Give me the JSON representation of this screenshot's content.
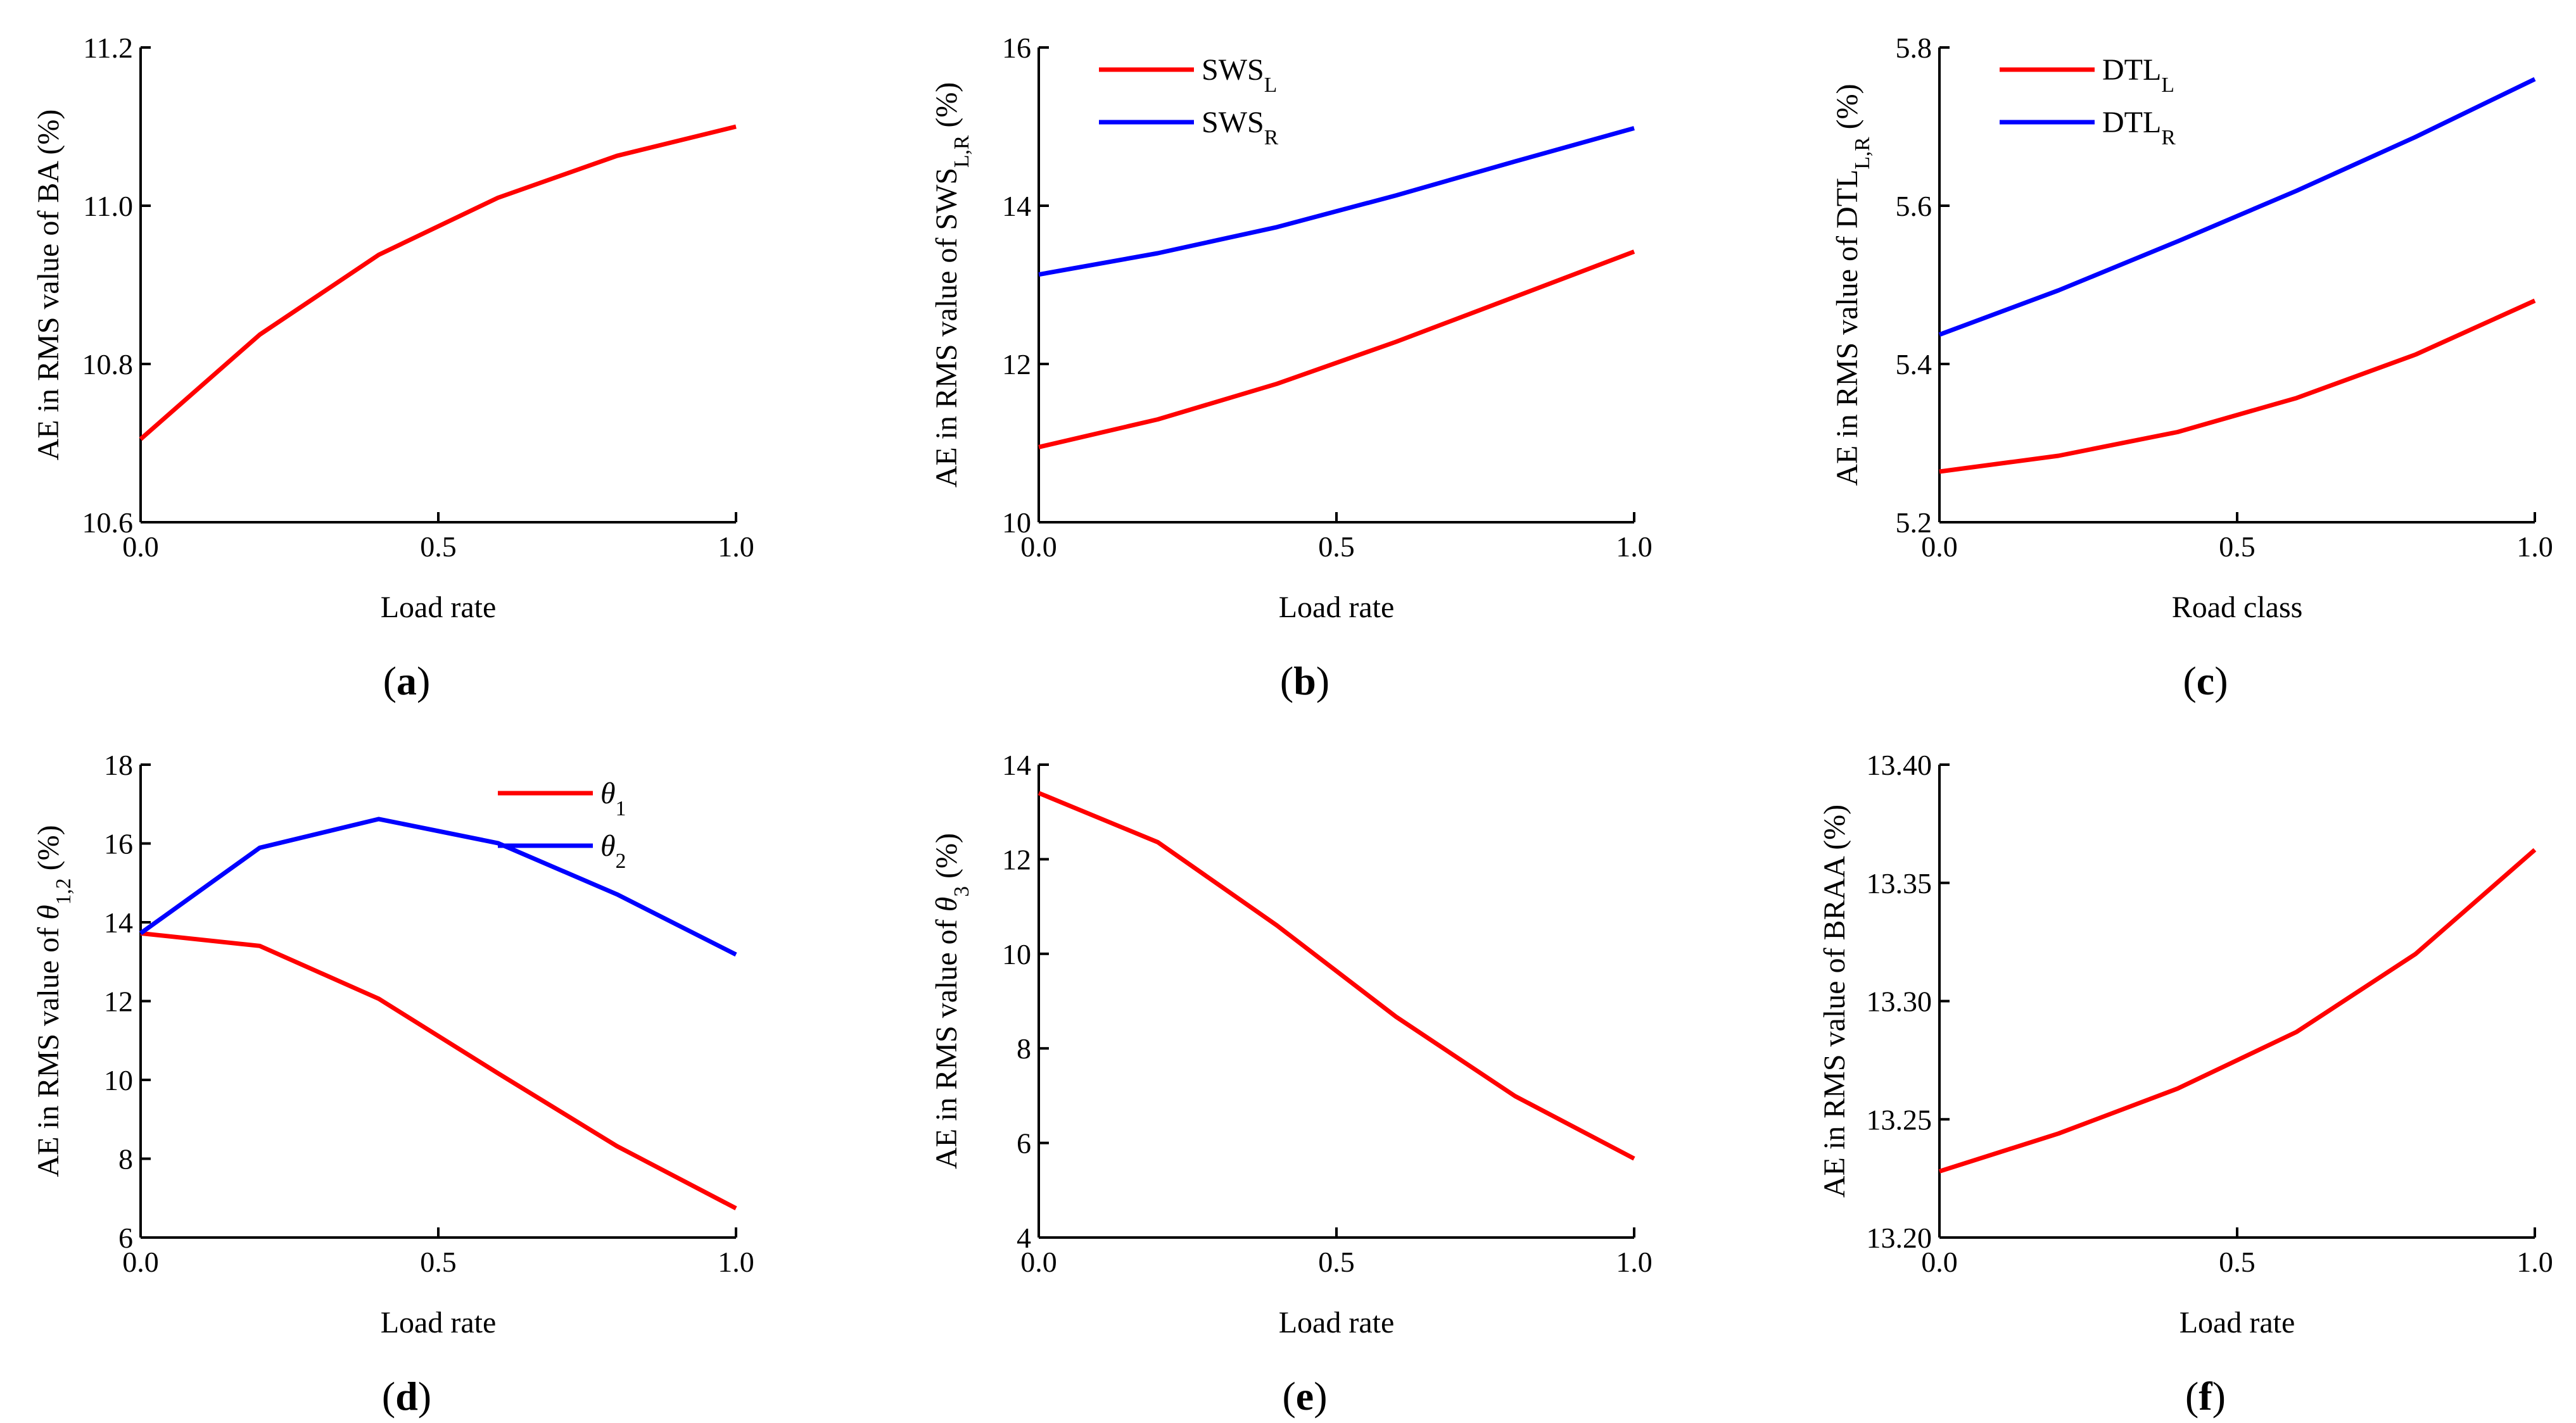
{
  "figure": {
    "title": ""
  },
  "chart_data": [
    {
      "id": "a",
      "type": "line",
      "caption": "a",
      "xlabel": "Load rate",
      "ylabel": [
        {
          "t": "AE in RMS value of BA (%)"
        }
      ],
      "xlim": [
        0,
        1
      ],
      "ylim": [
        10.6,
        11.2
      ],
      "xticks": [
        0,
        0.5,
        1
      ],
      "xtick_labels": [
        "0.0",
        "0.5",
        "1.0"
      ],
      "yticks": [
        10.6,
        10.8,
        11.0,
        11.2
      ],
      "ytick_labels": [
        "10.6",
        "10.8",
        "11.0",
        "11.2"
      ],
      "x": [
        0,
        0.2,
        0.4,
        0.6,
        0.8,
        1.0
      ],
      "series": [
        {
          "name": "BA",
          "color": "#ff0000",
          "values": [
            10.705,
            10.837,
            10.938,
            11.01,
            11.063,
            11.1
          ]
        }
      ],
      "legend": null
    },
    {
      "id": "b",
      "type": "line",
      "caption": "b",
      "xlabel": "Load rate",
      "ylabel": [
        {
          "t": "AE in RMS value of SWS"
        },
        {
          "t": "L,R",
          "sub": true
        },
        {
          "t": " (%)"
        }
      ],
      "xlim": [
        0,
        1
      ],
      "ylim": [
        10,
        16
      ],
      "xticks": [
        0,
        0.5,
        1
      ],
      "xtick_labels": [
        "0.0",
        "0.5",
        "1.0"
      ],
      "yticks": [
        10,
        12,
        14,
        16
      ],
      "ytick_labels": [
        "10",
        "12",
        "14",
        "16"
      ],
      "x": [
        0,
        0.2,
        0.4,
        0.6,
        0.8,
        1.0
      ],
      "series": [
        {
          "name": "SWS_L",
          "color": "#ff0000",
          "values": [
            10.95,
            11.3,
            11.75,
            12.28,
            12.85,
            13.42
          ]
        },
        {
          "name": "SWS_R",
          "color": "#0000ff",
          "values": [
            13.13,
            13.4,
            13.73,
            14.13,
            14.56,
            14.98
          ]
        }
      ],
      "legend": {
        "position": "top-left",
        "entries": [
          {
            "color": "#ff0000",
            "parts": [
              {
                "t": "SWS"
              },
              {
                "t": "L",
                "sub": true
              }
            ]
          },
          {
            "color": "#0000ff",
            "parts": [
              {
                "t": "SWS"
              },
              {
                "t": "R",
                "sub": true
              }
            ]
          }
        ]
      }
    },
    {
      "id": "c",
      "type": "line",
      "caption": "c",
      "xlabel": "Road class",
      "ylabel": [
        {
          "t": "AE in RMS value of DTL"
        },
        {
          "t": "L,R",
          "sub": true
        },
        {
          "t": " (%)"
        }
      ],
      "xlim": [
        0,
        1
      ],
      "ylim": [
        5.2,
        5.8
      ],
      "xticks": [
        0,
        0.5,
        1
      ],
      "xtick_labels": [
        "0.0",
        "0.5",
        "1.0"
      ],
      "yticks": [
        5.2,
        5.4,
        5.6,
        5.8
      ],
      "ytick_labels": [
        "5.2",
        "5.4",
        "5.6",
        "5.8"
      ],
      "x": [
        0,
        0.2,
        0.4,
        0.6,
        0.8,
        1.0
      ],
      "series": [
        {
          "name": "DTL_L",
          "color": "#ff0000",
          "values": [
            5.264,
            5.284,
            5.314,
            5.357,
            5.412,
            5.48
          ]
        },
        {
          "name": "DTL_R",
          "color": "#0000ff",
          "values": [
            5.437,
            5.493,
            5.555,
            5.619,
            5.687,
            5.76
          ]
        }
      ],
      "legend": {
        "position": "top-left",
        "entries": [
          {
            "color": "#ff0000",
            "parts": [
              {
                "t": "DTL"
              },
              {
                "t": "L",
                "sub": true
              }
            ]
          },
          {
            "color": "#0000ff",
            "parts": [
              {
                "t": "DTL"
              },
              {
                "t": "R",
                "sub": true
              }
            ]
          }
        ]
      }
    },
    {
      "id": "d",
      "type": "line",
      "caption": "d",
      "xlabel": "Load rate",
      "ylabel": [
        {
          "t": "AE in RMS value of "
        },
        {
          "t": "θ",
          "italic": true
        },
        {
          "t": "1,2",
          "sub": true
        },
        {
          "t": " (%)"
        }
      ],
      "xlim": [
        0,
        1
      ],
      "ylim": [
        6,
        18
      ],
      "xticks": [
        0,
        0.5,
        1
      ],
      "xtick_labels": [
        "0.0",
        "0.5",
        "1.0"
      ],
      "yticks": [
        6,
        8,
        10,
        12,
        14,
        16,
        18
      ],
      "ytick_labels": [
        "6",
        "8",
        "10",
        "12",
        "14",
        "16",
        "18"
      ],
      "x": [
        0,
        0.2,
        0.4,
        0.6,
        0.8,
        1.0
      ],
      "series": [
        {
          "name": "θ1",
          "color": "#ff0000",
          "values": [
            13.72,
            13.4,
            12.06,
            10.17,
            8.32,
            6.74
          ]
        },
        {
          "name": "θ2",
          "color": "#0000ff",
          "values": [
            13.72,
            15.89,
            16.62,
            16.01,
            14.71,
            13.18
          ]
        }
      ],
      "legend": {
        "position": "top-right",
        "entries": [
          {
            "color": "#ff0000",
            "parts": [
              {
                "t": "θ",
                "italic": true
              },
              {
                "t": "1",
                "sub": true
              }
            ]
          },
          {
            "color": "#0000ff",
            "parts": [
              {
                "t": "θ",
                "italic": true
              },
              {
                "t": "2",
                "sub": true
              }
            ]
          }
        ]
      }
    },
    {
      "id": "e",
      "type": "line",
      "caption": "e",
      "xlabel": "Load rate",
      "ylabel": [
        {
          "t": "AE in RMS value of "
        },
        {
          "t": "θ",
          "italic": true
        },
        {
          "t": "3",
          "sub": true
        },
        {
          "t": " (%)"
        }
      ],
      "xlim": [
        0,
        1
      ],
      "ylim": [
        4,
        14
      ],
      "xticks": [
        0,
        0.5,
        1
      ],
      "xtick_labels": [
        "0.0",
        "0.5",
        "1.0"
      ],
      "yticks": [
        4,
        6,
        8,
        10,
        12,
        14
      ],
      "ytick_labels": [
        "4",
        "6",
        "8",
        "10",
        "12",
        "14"
      ],
      "x": [
        0,
        0.2,
        0.4,
        0.6,
        0.8,
        1.0
      ],
      "series": [
        {
          "name": "θ3",
          "color": "#ff0000",
          "values": [
            13.4,
            12.36,
            10.6,
            8.67,
            6.99,
            5.67
          ]
        }
      ],
      "legend": null
    },
    {
      "id": "f",
      "type": "line",
      "caption": "f",
      "xlabel": "Load rate",
      "ylabel": [
        {
          "t": "AE in RMS value of BRAA (%)"
        }
      ],
      "xlim": [
        0,
        1
      ],
      "ylim": [
        13.2,
        13.4
      ],
      "xticks": [
        0,
        0.5,
        1
      ],
      "xtick_labels": [
        "0.0",
        "0.5",
        "1.0"
      ],
      "yticks": [
        13.2,
        13.25,
        13.3,
        13.35,
        13.4
      ],
      "ytick_labels": [
        "13.20",
        "13.25",
        "13.30",
        "13.35",
        "13.40"
      ],
      "x": [
        0,
        0.2,
        0.4,
        0.6,
        0.8,
        1.0
      ],
      "series": [
        {
          "name": "BRAA",
          "color": "#ff0000",
          "values": [
            13.228,
            13.244,
            13.263,
            13.287,
            13.32,
            13.364
          ]
        }
      ],
      "legend": null
    }
  ]
}
